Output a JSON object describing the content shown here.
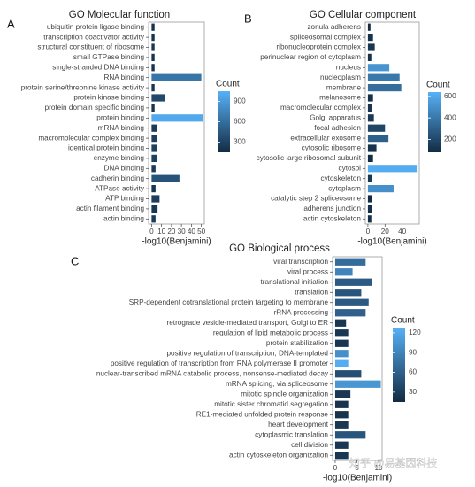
{
  "chart_data": [
    {
      "type": "barh",
      "panel": "A",
      "title": "GO Molecular function",
      "x_label": "-log10(Benjamini)",
      "categories": [
        "ubiquitin protein ligase binding",
        "transcription coactivator activity",
        "structural constituent of ribosome",
        "small GTPase binding",
        "single-stranded DNA binding",
        "RNA binding",
        "protein serine/threonine kinase activity",
        "protein kinase binding",
        "protein domain specific binding",
        "protein binding",
        "mRNA binding",
        "macromolecular complex binding",
        "identical protein binding",
        "enzyme binding",
        "DNA binding",
        "cadherin binding",
        "ATPase activity",
        "ATP binding",
        "actin filament binding",
        "actin binding"
      ],
      "values": [
        3,
        3,
        3,
        3,
        3,
        50,
        3,
        13,
        3,
        52,
        5,
        5,
        5,
        5,
        4,
        28,
        4,
        8,
        6,
        4
      ],
      "counts": [
        200,
        210,
        230,
        210,
        200,
        650,
        220,
        350,
        210,
        1000,
        260,
        280,
        290,
        300,
        250,
        420,
        220,
        280,
        230,
        250
      ],
      "xlim": [
        -3,
        53
      ],
      "xticks": [
        0,
        10,
        20,
        30,
        40,
        50
      ],
      "color_title": "Count",
      "clim": [
        150,
        1050
      ],
      "cticks": [
        300,
        600,
        900
      ],
      "low_color": "#132B43",
      "high_color": "#56B1F7"
    },
    {
      "type": "barh",
      "panel": "B",
      "title": "GO Cellular component",
      "x_label": "-log10(Benjamini)",
      "categories": [
        "zonula adherens",
        "spliceosomal complex",
        "ribonucleoprotein complex",
        "perinuclear region of cytoplasm",
        "nucleus",
        "nucleoplasm",
        "membrane",
        "melanosome",
        "macromolecular complex",
        "Golgi apparatus",
        "focal adhesion",
        "extracellular exosome",
        "cytosolic ribosome",
        "cytosolic large ribosomal subunit",
        "cytosol",
        "cytoskeleton",
        "cytoplasm",
        "catalytic step 2 spliceosome",
        "adherens junction",
        "actin cytoskeleton"
      ],
      "values": [
        3,
        6,
        8,
        4,
        25,
        37,
        39,
        6,
        5,
        7,
        20,
        24,
        10,
        6,
        57,
        5,
        30,
        5,
        5,
        4
      ],
      "counts": [
        90,
        110,
        130,
        110,
        520,
        400,
        360,
        100,
        130,
        140,
        190,
        300,
        110,
        90,
        620,
        140,
        500,
        90,
        100,
        100
      ],
      "xlim": [
        -3,
        60
      ],
      "xticks": [
        0,
        20,
        40
      ],
      "color_title": "Count",
      "clim": [
        80,
        640
      ],
      "cticks": [
        200,
        400,
        600
      ],
      "low_color": "#132B43",
      "high_color": "#56B1F7"
    },
    {
      "type": "barh",
      "panel": "C",
      "title": "GO Biological process",
      "x_label": "-log10(Benjamini)",
      "categories": [
        "viral transcription",
        "viral process",
        "translational initiation",
        "translation",
        "SRP-dependent cotranslational protein targeting to membrane",
        "rRNA processing",
        "retrograde vesicle-mediated transport, Golgi to ER",
        "regulation of lipid metabolic process",
        "protein stabilization",
        "positive regulation of transcription, DNA-templated",
        "positive regulation of transcription from RNA polymerase II promoter",
        "nuclear-transcribed mRNA catabolic process, nonsense-mediated decay",
        "mRNA splicing, via spliceosome",
        "mitotic spindle organization",
        "mitotic sister chromatid segregation",
        "IRE1-mediated unfolded protein response",
        "heart development",
        "cytoplasmic translation",
        "cell division",
        "actin cytoskeleton organization"
      ],
      "values": [
        7,
        4,
        8.5,
        6,
        7.7,
        7,
        2.5,
        3,
        3,
        3,
        3,
        6,
        10.5,
        3.5,
        3,
        3,
        3,
        7,
        3,
        3
      ],
      "counts": [
        70,
        90,
        55,
        50,
        55,
        60,
        25,
        25,
        25,
        100,
        125,
        45,
        105,
        25,
        22,
        22,
        25,
        50,
        25,
        25
      ],
      "xlim": [
        -0.6,
        10.8
      ],
      "xticks": [
        0,
        5,
        10
      ],
      "color_title": "Count",
      "clim": [
        15,
        128
      ],
      "cticks": [
        30,
        60,
        90,
        120
      ],
      "low_color": "#132B43",
      "high_color": "#56B1F7"
    }
  ],
  "watermark": "知乎 @易基因科技"
}
